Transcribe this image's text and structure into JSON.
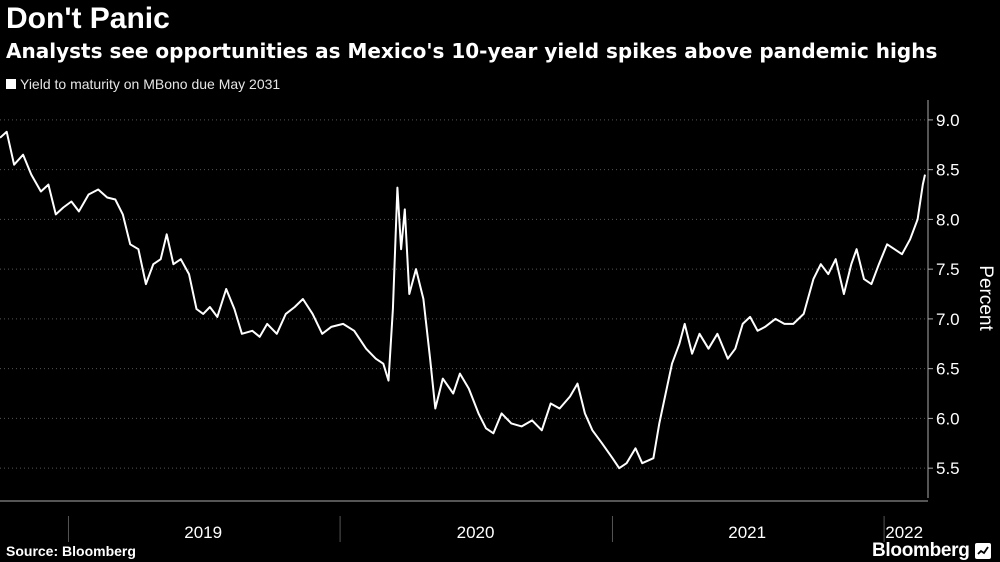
{
  "header": {
    "title": "Don't Panic",
    "subtitle": "Analysts see opportunities as Mexico's 10-year yield spikes above pandemic highs"
  },
  "footer": {
    "source": "Source: Bloomberg",
    "brand": "Bloomberg",
    "brand_icon": "bloomberg-chart-icon"
  },
  "colors": {
    "background": "#000000",
    "line": "#ffffff",
    "grid": "#555555",
    "axis": "#aaaaaa"
  },
  "chart_data": {
    "type": "line",
    "title": "Don't Panic",
    "subtitle": "Analysts see opportunities as Mexico's 10-year yield spikes above pandemic highs",
    "ylabel": "Percent",
    "xlabel": "",
    "ylim": [
      5.2,
      9.2
    ],
    "yticks": [
      9.0,
      8.5,
      8.0,
      7.5,
      7.0,
      6.5,
      6.0,
      5.5
    ],
    "ytick_labels": [
      "9.0",
      "8.5",
      "8.0",
      "7.5",
      "7.0",
      "6.5",
      "6.0",
      "5.5"
    ],
    "y_axis_side": "right",
    "grid": "horizontal dotted",
    "legend_placement": "top-left",
    "xlim": [
      "2018-10-01",
      "2022-03-01"
    ],
    "x_boundaries": [
      "2019-01-01",
      "2020-01-01",
      "2021-01-01",
      "2022-01-01"
    ],
    "x_period_labels": [
      {
        "label": "2019",
        "center": "2019-07-01"
      },
      {
        "label": "2020",
        "center": "2020-07-01"
      },
      {
        "label": "2021",
        "center": "2021-07-01"
      },
      {
        "label": "2022",
        "center": "2022-01-28"
      }
    ],
    "series": [
      {
        "name": "Yield to maturity on MBono due May 2031",
        "points": [
          [
            "2018-10-01",
            8.82
          ],
          [
            "2018-10-10",
            8.88
          ],
          [
            "2018-10-20",
            8.55
          ],
          [
            "2018-11-01",
            8.65
          ],
          [
            "2018-11-12",
            8.45
          ],
          [
            "2018-11-25",
            8.28
          ],
          [
            "2018-12-05",
            8.35
          ],
          [
            "2018-12-15",
            8.05
          ],
          [
            "2018-12-25",
            8.12
          ],
          [
            "2019-01-05",
            8.18
          ],
          [
            "2019-01-15",
            8.08
          ],
          [
            "2019-01-28",
            8.25
          ],
          [
            "2019-02-10",
            8.3
          ],
          [
            "2019-02-22",
            8.22
          ],
          [
            "2019-03-05",
            8.2
          ],
          [
            "2019-03-15",
            8.05
          ],
          [
            "2019-03-25",
            7.75
          ],
          [
            "2019-04-05",
            7.7
          ],
          [
            "2019-04-15",
            7.35
          ],
          [
            "2019-04-25",
            7.55
          ],
          [
            "2019-05-05",
            7.6
          ],
          [
            "2019-05-13",
            7.85
          ],
          [
            "2019-05-22",
            7.55
          ],
          [
            "2019-06-01",
            7.6
          ],
          [
            "2019-06-12",
            7.45
          ],
          [
            "2019-06-22",
            7.1
          ],
          [
            "2019-07-01",
            7.05
          ],
          [
            "2019-07-10",
            7.12
          ],
          [
            "2019-07-20",
            7.02
          ],
          [
            "2019-08-01",
            7.3
          ],
          [
            "2019-08-12",
            7.1
          ],
          [
            "2019-08-22",
            6.85
          ],
          [
            "2019-09-05",
            6.88
          ],
          [
            "2019-09-15",
            6.82
          ],
          [
            "2019-09-25",
            6.95
          ],
          [
            "2019-10-08",
            6.85
          ],
          [
            "2019-10-20",
            7.05
          ],
          [
            "2019-11-01",
            7.12
          ],
          [
            "2019-11-12",
            7.2
          ],
          [
            "2019-11-25",
            7.05
          ],
          [
            "2019-12-08",
            6.85
          ],
          [
            "2019-12-20",
            6.92
          ],
          [
            "2020-01-05",
            6.95
          ],
          [
            "2020-01-20",
            6.88
          ],
          [
            "2020-02-05",
            6.7
          ],
          [
            "2020-02-18",
            6.6
          ],
          [
            "2020-02-28",
            6.55
          ],
          [
            "2020-03-06",
            6.38
          ],
          [
            "2020-03-12",
            7.1
          ],
          [
            "2020-03-18",
            8.32
          ],
          [
            "2020-03-23",
            7.7
          ],
          [
            "2020-03-28",
            8.1
          ],
          [
            "2020-04-03",
            7.25
          ],
          [
            "2020-04-12",
            7.5
          ],
          [
            "2020-04-22",
            7.2
          ],
          [
            "2020-05-01",
            6.6
          ],
          [
            "2020-05-08",
            6.1
          ],
          [
            "2020-05-18",
            6.4
          ],
          [
            "2020-06-01",
            6.25
          ],
          [
            "2020-06-10",
            6.45
          ],
          [
            "2020-06-22",
            6.3
          ],
          [
            "2020-07-05",
            6.05
          ],
          [
            "2020-07-15",
            5.9
          ],
          [
            "2020-07-25",
            5.85
          ],
          [
            "2020-08-05",
            6.05
          ],
          [
            "2020-08-18",
            5.95
          ],
          [
            "2020-09-01",
            5.92
          ],
          [
            "2020-09-15",
            5.98
          ],
          [
            "2020-09-28",
            5.88
          ],
          [
            "2020-10-10",
            6.15
          ],
          [
            "2020-10-22",
            6.1
          ],
          [
            "2020-11-05",
            6.22
          ],
          [
            "2020-11-15",
            6.35
          ],
          [
            "2020-11-25",
            6.05
          ],
          [
            "2020-12-05",
            5.88
          ],
          [
            "2020-12-18",
            5.75
          ],
          [
            "2021-01-01",
            5.6
          ],
          [
            "2021-01-10",
            5.5
          ],
          [
            "2021-01-20",
            5.55
          ],
          [
            "2021-02-01",
            5.7
          ],
          [
            "2021-02-10",
            5.55
          ],
          [
            "2021-02-25",
            5.6
          ],
          [
            "2021-03-05",
            5.95
          ],
          [
            "2021-03-12",
            6.2
          ],
          [
            "2021-03-22",
            6.55
          ],
          [
            "2021-04-01",
            6.75
          ],
          [
            "2021-04-08",
            6.95
          ],
          [
            "2021-04-18",
            6.65
          ],
          [
            "2021-04-28",
            6.85
          ],
          [
            "2021-05-10",
            6.7
          ],
          [
            "2021-05-22",
            6.85
          ],
          [
            "2021-06-05",
            6.6
          ],
          [
            "2021-06-15",
            6.7
          ],
          [
            "2021-06-25",
            6.95
          ],
          [
            "2021-07-05",
            7.02
          ],
          [
            "2021-07-15",
            6.88
          ],
          [
            "2021-07-25",
            6.92
          ],
          [
            "2021-08-08",
            7.0
          ],
          [
            "2021-08-20",
            6.95
          ],
          [
            "2021-09-01",
            6.95
          ],
          [
            "2021-09-15",
            7.05
          ],
          [
            "2021-09-28",
            7.4
          ],
          [
            "2021-10-08",
            7.55
          ],
          [
            "2021-10-18",
            7.45
          ],
          [
            "2021-10-28",
            7.6
          ],
          [
            "2021-11-08",
            7.25
          ],
          [
            "2021-11-18",
            7.55
          ],
          [
            "2021-11-25",
            7.7
          ],
          [
            "2021-12-05",
            7.4
          ],
          [
            "2021-12-15",
            7.35
          ],
          [
            "2021-12-25",
            7.55
          ],
          [
            "2022-01-05",
            7.75
          ],
          [
            "2022-01-15",
            7.7
          ],
          [
            "2022-01-25",
            7.65
          ],
          [
            "2022-02-05",
            7.8
          ],
          [
            "2022-02-15",
            8.0
          ],
          [
            "2022-02-22",
            8.35
          ],
          [
            "2022-02-25",
            8.45
          ]
        ]
      }
    ]
  }
}
